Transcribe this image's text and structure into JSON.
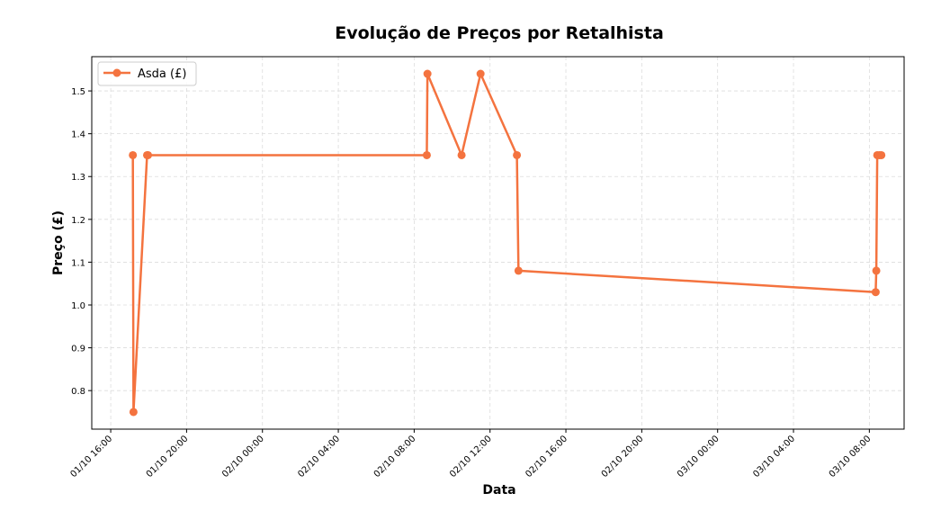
{
  "chart_data": {
    "type": "line",
    "title": "Evolução de Preços por Retalhista",
    "xlabel": "Data",
    "ylabel": "Preço (£)",
    "grid": true,
    "legend_position": "top-left",
    "x_ticks": [
      "01/10 16:00",
      "01/10 20:00",
      "02/10 00:00",
      "02/10 04:00",
      "02/10 08:00",
      "02/10 12:00",
      "02/10 16:00",
      "02/10 20:00",
      "03/10 00:00",
      "03/10 04:00",
      "03/10 08:00"
    ],
    "xlim": [
      "2024-10-01T15:00",
      "2024-10-03T09:50"
    ],
    "y_ticks": [
      "0.8",
      "0.9",
      "1.0",
      "1.1",
      "1.2",
      "1.3",
      "1.4",
      "1.5"
    ],
    "ylim": [
      0.71,
      1.58
    ],
    "series": [
      {
        "name": "Asda (£)",
        "color": "#f4733f",
        "points": [
          {
            "x": "2024-10-01T17:10",
            "y": 1.35
          },
          {
            "x": "2024-10-01T17:12",
            "y": 0.75
          },
          {
            "x": "2024-10-01T17:55",
            "y": 1.35
          },
          {
            "x": "2024-10-01T17:58",
            "y": 1.35
          },
          {
            "x": "2024-10-02T08:40",
            "y": 1.35
          },
          {
            "x": "2024-10-02T08:42",
            "y": 1.54
          },
          {
            "x": "2024-10-02T10:30",
            "y": 1.35
          },
          {
            "x": "2024-10-02T11:30",
            "y": 1.54
          },
          {
            "x": "2024-10-02T13:25",
            "y": 1.35
          },
          {
            "x": "2024-10-02T13:30",
            "y": 1.08
          },
          {
            "x": "2024-10-03T08:20",
            "y": 1.03
          },
          {
            "x": "2024-10-03T08:22",
            "y": 1.08
          },
          {
            "x": "2024-10-03T08:25",
            "y": 1.35
          },
          {
            "x": "2024-10-03T08:32",
            "y": 1.35
          },
          {
            "x": "2024-10-03T08:38",
            "y": 1.35
          }
        ]
      }
    ]
  }
}
